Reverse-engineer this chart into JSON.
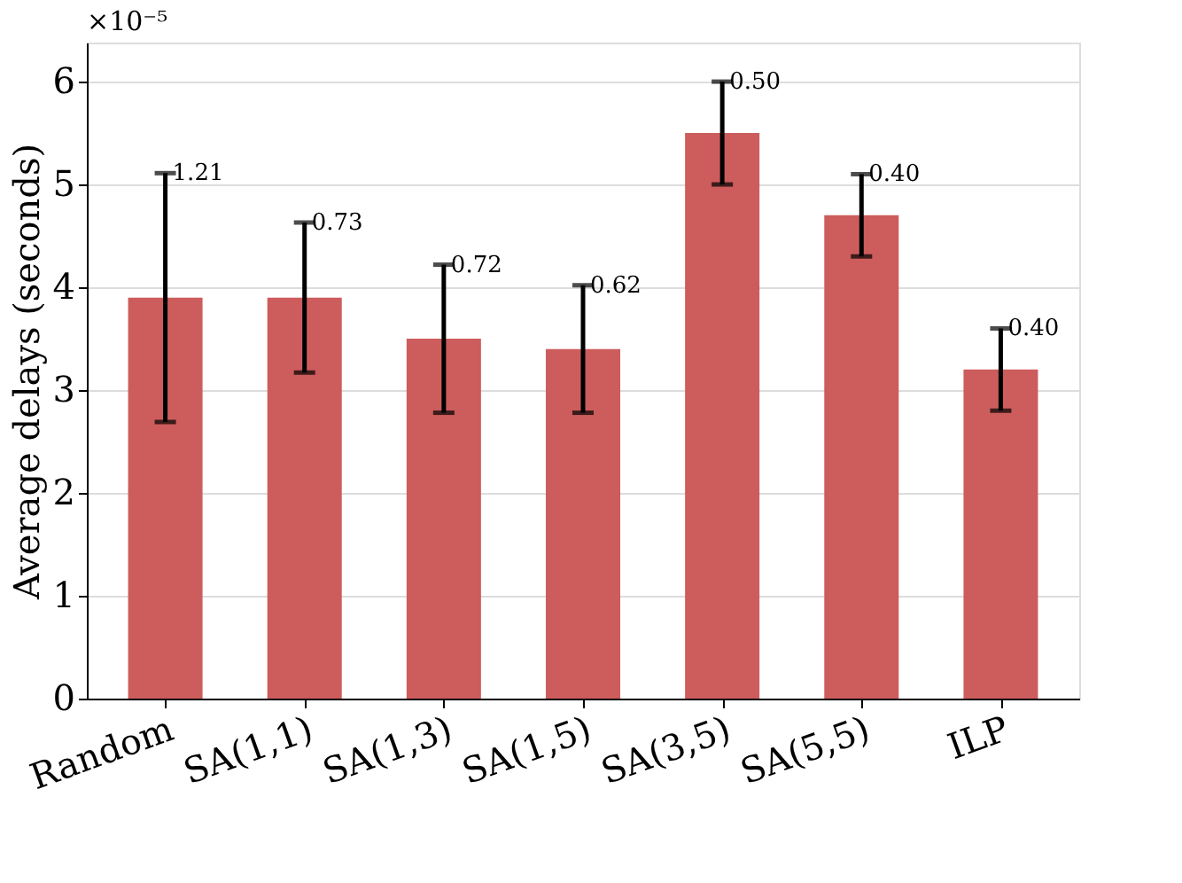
{
  "chart_data": {
    "type": "bar",
    "ylabel": "Average delays (seconds)",
    "categories": [
      "Random",
      "SA(1,1)",
      "SA(1,3)",
      "SA(1,5)",
      "SA(3,5)",
      "SA(5,5)",
      "ILP"
    ],
    "values": [
      3.9,
      3.9,
      3.5,
      3.4,
      5.5,
      4.7,
      3.2
    ],
    "errors": [
      1.21,
      0.73,
      0.72,
      0.62,
      0.5,
      0.4,
      0.4
    ],
    "color": "#cd5c5c",
    "ylim": [
      0,
      6.38
    ],
    "yticks": [
      0,
      1,
      2,
      3,
      4,
      5,
      6
    ],
    "grid": "y",
    "annotations": [
      "×10⁻⁵",
      {
        "text": "1.21",
        "x": "Random",
        "y": 5.11
      },
      {
        "text": "0.73",
        "x": "SA(1,1)",
        "y": 4.63
      },
      {
        "text": "0.72",
        "x": "SA(1,3)",
        "y": 4.22
      },
      {
        "text": "0.62",
        "x": "SA(1,5)",
        "y": 4.02
      },
      {
        "text": "0.50",
        "x": "SA(3,5)",
        "y": 6.0
      },
      {
        "text": "0.40",
        "x": "SA(5,5)",
        "y": 5.1
      },
      {
        "text": "0.40",
        "x": "ILP",
        "y": 3.6
      }
    ]
  }
}
